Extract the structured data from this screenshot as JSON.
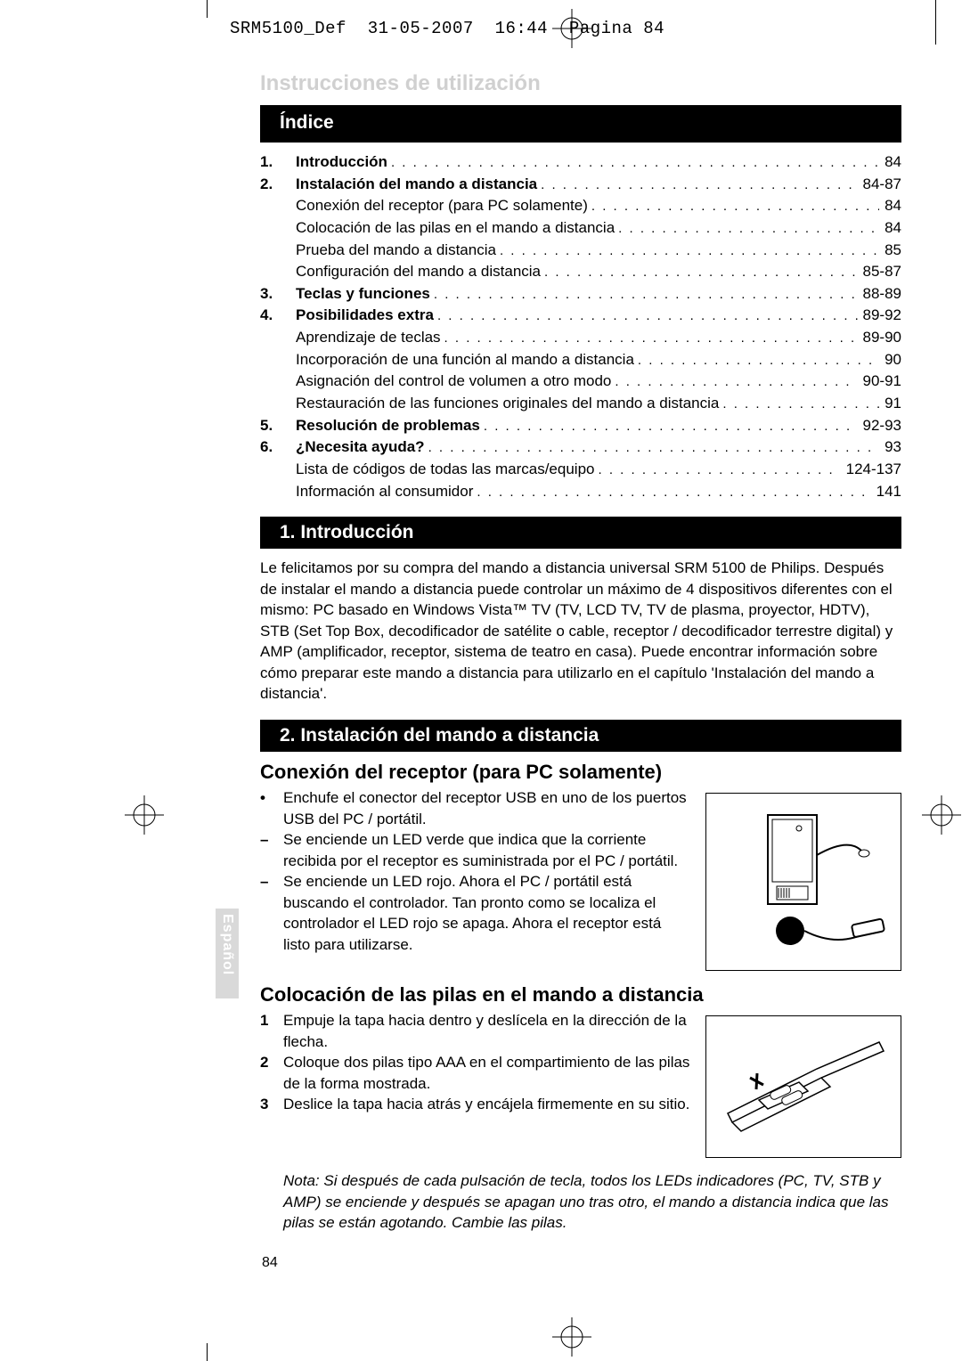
{
  "header": {
    "file": "SRM5100_Def",
    "date": "31-05-2007",
    "time": "16:44",
    "page_label": "Pagina 84"
  },
  "pale_title": "Instrucciones de utilización",
  "index": {
    "title": "Índice",
    "rows": [
      {
        "n": "1.",
        "label": "Introducción",
        "bold": true,
        "page": "84"
      },
      {
        "n": "2.",
        "label": "Instalación del mando a distancia",
        "bold": true,
        "page": "84-87"
      },
      {
        "n": "",
        "label": "Conexión del receptor (para PC solamente)",
        "bold": false,
        "page": "84"
      },
      {
        "n": "",
        "label": "Colocación de las pilas en el mando a distancia",
        "bold": false,
        "page": "84"
      },
      {
        "n": "",
        "label": "Prueba del mando a distancia",
        "bold": false,
        "page": "85"
      },
      {
        "n": "",
        "label": "Configuración del mando a distancia",
        "bold": false,
        "page": "85-87"
      },
      {
        "n": "3.",
        "label": "Teclas y funciones",
        "bold": true,
        "page": "88-89"
      },
      {
        "n": "4.",
        "label": "Posibilidades extra",
        "bold": true,
        "page": "89-92"
      },
      {
        "n": "",
        "label": "Aprendizaje de teclas",
        "bold": false,
        "page": "89-90"
      },
      {
        "n": "",
        "label": "Incorporación de una función al mando a distancia",
        "bold": false,
        "page": "90"
      },
      {
        "n": "",
        "label": "Asignación del control de volumen a otro modo",
        "bold": false,
        "page": "90-91"
      },
      {
        "n": "",
        "label": "Restauración de las funciones originales del mando a distancia",
        "bold": false,
        "page": "91"
      },
      {
        "n": "5.",
        "label": "Resolución de problemas",
        "bold": true,
        "page": "92-93"
      },
      {
        "n": "6.",
        "label": "¿Necesita ayuda?",
        "bold": true,
        "page": "93"
      },
      {
        "n": "",
        "label": "Lista de códigos de todas las marcas/equipo",
        "bold": false,
        "page": "124-137"
      },
      {
        "n": "",
        "label": "Información al consumidor",
        "bold": false,
        "page": "141"
      }
    ]
  },
  "section1": {
    "title": "1. Introducción",
    "body": "Le felicitamos por su compra del mando a distancia universal SRM 5100 de Philips. Después de instalar el mando a distancia puede controlar un máximo de 4 dispositivos diferentes con el mismo: PC basado en Windows Vista™ TV (TV, LCD TV, TV de plasma, proyector, HDTV), STB (Set Top Box, decodificador de satélite o cable, receptor / decodificador terrestre digital) y AMP (amplificador, receptor, sistema de teatro en casa).\n Puede encontrar información sobre cómo preparar este mando a distancia para utilizarlo en el capítulo 'Instalación del mando a distancia'."
  },
  "section2": {
    "title": "2. Instalación del mando a distancia",
    "sub1": {
      "title": "Conexión del receptor (para PC solamente)",
      "items": [
        {
          "mk": "•",
          "tx": "Enchufe el conector del receptor USB en uno de los puertos USB del PC / portátil."
        },
        {
          "mk": "–",
          "tx": "Se enciende un LED verde que indica que la corriente recibida por el receptor es suministrada por el PC / portátil."
        },
        {
          "mk": "–",
          "tx": "Se enciende un LED rojo. Ahora el PC / portátil está buscando el controlador. Tan pronto como se localiza el controlador el LED rojo se apaga. Ahora el receptor está listo para utilizarse."
        }
      ]
    },
    "sub2": {
      "title": "Colocación de las pilas en el mando a distancia",
      "items": [
        {
          "mk": "1",
          "tx": "Empuje la tapa hacia dentro y deslícela en la dirección de la flecha."
        },
        {
          "mk": "2",
          "tx": "Coloque dos pilas tipo AAA en el compartimiento de las pilas de la forma mostrada."
        },
        {
          "mk": "3",
          "tx": "Deslice la tapa hacia atrás y encájela firmemente en su sitio."
        }
      ],
      "note": "Nota: Si después de cada pulsación de tecla, todos los LEDs indicadores (PC, TV, STB y AMP) se enciende y después se apagan uno tras otro, el mando a distancia indica que las pilas se están agotando. Cambie las pilas."
    }
  },
  "lang_tab": "Español",
  "page_number": "84",
  "colors": {
    "bar_bg": "#000000",
    "bar_fg": "#ffffff",
    "pale_header": "#d0d0d0",
    "tab_bg": "#d9d9d9"
  }
}
